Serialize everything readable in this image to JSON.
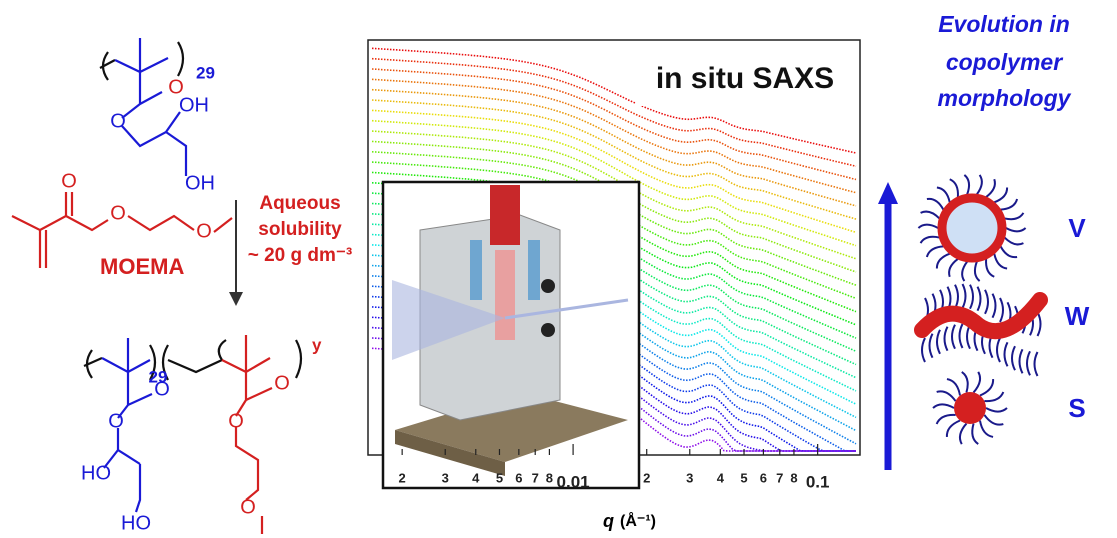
{
  "top_polymer": {
    "subscript": "29",
    "atoms": [
      "O",
      "O",
      "OH",
      "OH"
    ]
  },
  "monomer": {
    "name": "MOEMA",
    "atoms": [
      "O",
      "O",
      "O"
    ]
  },
  "arrow_label": [
    "Aqueous",
    "solubility",
    "~ 20 g dm⁻³"
  ],
  "bottom_polymer": {
    "subscripts": [
      "29",
      "y"
    ],
    "blue_atoms": [
      "O",
      "O",
      "HO",
      "HO"
    ],
    "red_atoms": [
      "O",
      "O",
      "O"
    ]
  },
  "saxs_plot": {
    "title": "in situ SAXS",
    "xlabel_symbol": "q",
    "xlabel_unit": "(Å⁻¹)",
    "log_x": true,
    "xlim": [
      0.00145,
      0.149
    ],
    "xticks": [
      {
        "value": 0.002,
        "label": "2"
      },
      {
        "value": 0.003,
        "label": "3"
      },
      {
        "value": 0.004,
        "label": "4"
      },
      {
        "value": 0.005,
        "label": "5"
      },
      {
        "value": 0.006,
        "label": "6"
      },
      {
        "value": 0.007,
        "label": "7"
      },
      {
        "value": 0.008,
        "label": "8"
      },
      0.01,
      {
        "value": 0.02,
        "label": "2"
      },
      {
        "value": 0.03,
        "label": "3"
      },
      {
        "value": 0.04,
        "label": "4"
      },
      {
        "value": 0.05,
        "label": "5"
      },
      {
        "value": 0.06,
        "label": "6"
      },
      {
        "value": 0.07,
        "label": "7"
      },
      {
        "value": 0.08,
        "label": "8"
      },
      0.1
    ]
  },
  "morphology": {
    "title": [
      "Evolution in",
      "copolymer",
      "morphology"
    ],
    "labels": [
      "V",
      "W",
      "S"
    ]
  }
}
